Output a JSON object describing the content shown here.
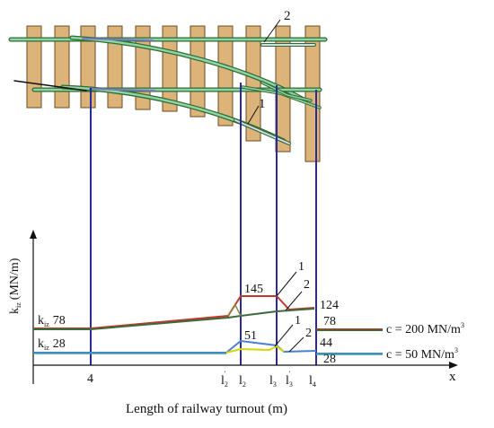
{
  "diagram": {
    "callouts": {
      "top_2": "2",
      "top_1": "1"
    },
    "axis": {
      "y_label": "k",
      "y_label_sub": "iz",
      "y_label_unit": "(MN/m)",
      "x_label": "x",
      "x_title": "Length of railway turnout (m)"
    },
    "left_labels": {
      "k_upper": "k",
      "k_upper_sub": "iz",
      "k_upper_value": "78",
      "k_lower": "k",
      "k_lower_sub": "iz",
      "k_lower_value": "28"
    },
    "value_labels": {
      "v145": "145",
      "v124": "124",
      "v78": "78",
      "v51": "51",
      "v44": "44",
      "v28": "28",
      "curve_1_upper": "1",
      "curve_2_upper": "2",
      "curve_1_lower": "1",
      "curve_2_lower": "2"
    },
    "legend": {
      "c_high": "c = 200 MN/m",
      "c_high_sup": "3",
      "c_low": "c = 50 MN/m",
      "c_low_sup": "3"
    },
    "x_ticks": {
      "t4": "4",
      "l2p": "l",
      "l2p_sub": "2",
      "l2p_sup": "'",
      "l2": "l",
      "l2_sub": "2",
      "l3": "l",
      "l3_sub": "3",
      "l3p": "l",
      "l3p_sub": "3",
      "l3p_sup": "'",
      "l4": "l",
      "l4_sub": "4"
    },
    "colors": {
      "sleeper": "#dcb47a",
      "sleeper_edge": "#6b4a1f",
      "rail_outline": "#2e6b2e",
      "rail_fill": "#8fd3a8",
      "guide": "#2a2a9a",
      "curve_red": "#c0392b",
      "curve_darkgreen": "#3b6b3b",
      "curve_blue": "#4a7fd6",
      "curve_yellow": "#d6d600",
      "curve_teal": "#3aa0a0"
    }
  }
}
